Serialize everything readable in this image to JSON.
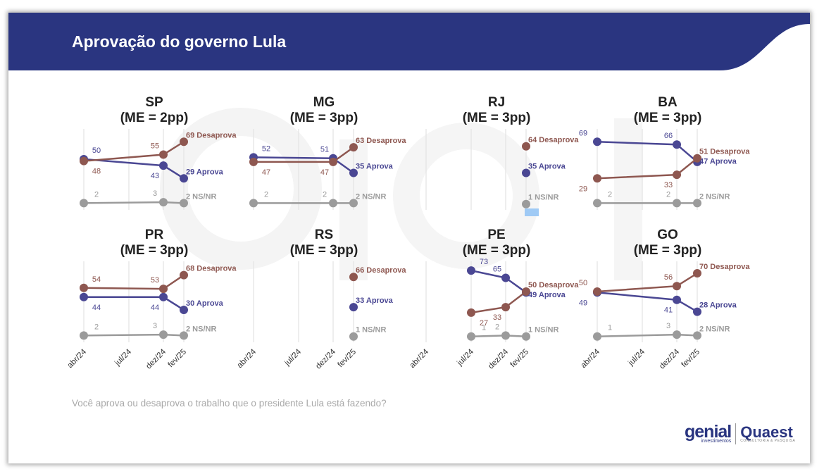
{
  "header": {
    "title": "Aprovação do governo Lula"
  },
  "watermark": {
    "line1": "genial",
    "line2": "investimentos"
  },
  "footer": {
    "question": "Você aprova ou desaprova o trabalho que o presidente Lula está fazendo?"
  },
  "logos": {
    "genial": "genial",
    "genial_sub": "investimentos",
    "quaest": "Quaest",
    "quaest_sub": "CONSULTORIA & PESQUISA"
  },
  "colors": {
    "header": "#2a3580",
    "aprova": "#4a4793",
    "desaprova": "#8e5750",
    "nsnr": "#9b9b9b",
    "grid": "#e3e3e3"
  },
  "chart_data": [
    {
      "type": "line",
      "title": "SP",
      "subtitle": "(ME = 2pp)",
      "categories": [
        "abr/24",
        "jul/24",
        "dez/24",
        "fev/25"
      ],
      "series": [
        {
          "name": "Aprova",
          "x": [
            "abr/24",
            "dez/24",
            "fev/25"
          ],
          "values": [
            50,
            43,
            29
          ]
        },
        {
          "name": "Desaprova",
          "x": [
            "abr/24",
            "dez/24",
            "fev/25"
          ],
          "values": [
            48,
            55,
            69
          ]
        },
        {
          "name": "NS/NR",
          "x": [
            "abr/24",
            "dez/24",
            "fev/25"
          ],
          "values": [
            2,
            3,
            2
          ]
        }
      ]
    },
    {
      "type": "line",
      "title": "MG",
      "subtitle": "(ME = 3pp)",
      "categories": [
        "abr/24",
        "jul/24",
        "dez/24",
        "fev/25"
      ],
      "series": [
        {
          "name": "Aprova",
          "x": [
            "abr/24",
            "dez/24",
            "fev/25"
          ],
          "values": [
            52,
            51,
            35
          ]
        },
        {
          "name": "Desaprova",
          "x": [
            "abr/24",
            "dez/24",
            "fev/25"
          ],
          "values": [
            47,
            47,
            63
          ]
        },
        {
          "name": "NS/NR",
          "x": [
            "abr/24",
            "dez/24",
            "fev/25"
          ],
          "values": [
            2,
            2,
            2
          ]
        }
      ]
    },
    {
      "type": "line",
      "title": "RJ",
      "subtitle": "(ME = 3pp)",
      "categories": [
        "abr/24",
        "jul/24",
        "dez/24",
        "fev/25"
      ],
      "series": [
        {
          "name": "Aprova",
          "x": [
            "fev/25"
          ],
          "values": [
            35
          ]
        },
        {
          "name": "Desaprova",
          "x": [
            "fev/25"
          ],
          "values": [
            64
          ]
        },
        {
          "name": "NS/NR",
          "x": [
            "fev/25"
          ],
          "values": [
            1
          ]
        }
      ]
    },
    {
      "type": "line",
      "title": "BA",
      "subtitle": "(ME = 3pp)",
      "categories": [
        "abr/24",
        "jul/24",
        "dez/24",
        "fev/25"
      ],
      "series": [
        {
          "name": "Aprova",
          "x": [
            "abr/24",
            "dez/24",
            "fev/25"
          ],
          "values": [
            69,
            66,
            47
          ]
        },
        {
          "name": "Desaprova",
          "x": [
            "abr/24",
            "dez/24",
            "fev/25"
          ],
          "values": [
            29,
            33,
            51
          ]
        },
        {
          "name": "NS/NR",
          "x": [
            "abr/24",
            "dez/24",
            "fev/25"
          ],
          "values": [
            2,
            2,
            2
          ]
        }
      ]
    },
    {
      "type": "line",
      "title": "PR",
      "subtitle": "(ME = 3pp)",
      "categories": [
        "abr/24",
        "jul/24",
        "dez/24",
        "fev/25"
      ],
      "series": [
        {
          "name": "Aprova",
          "x": [
            "abr/24",
            "dez/24",
            "fev/25"
          ],
          "values": [
            44,
            44,
            30
          ]
        },
        {
          "name": "Desaprova",
          "x": [
            "abr/24",
            "dez/24",
            "fev/25"
          ],
          "values": [
            54,
            53,
            68
          ]
        },
        {
          "name": "NS/NR",
          "x": [
            "abr/24",
            "dez/24",
            "fev/25"
          ],
          "values": [
            2,
            3,
            2
          ]
        }
      ]
    },
    {
      "type": "line",
      "title": "RS",
      "subtitle": "(ME = 3pp)",
      "categories": [
        "abr/24",
        "jul/24",
        "dez/24",
        "fev/25"
      ],
      "series": [
        {
          "name": "Aprova",
          "x": [
            "fev/25"
          ],
          "values": [
            33
          ]
        },
        {
          "name": "Desaprova",
          "x": [
            "fev/25"
          ],
          "values": [
            66
          ]
        },
        {
          "name": "NS/NR",
          "x": [
            "fev/25"
          ],
          "values": [
            1
          ]
        }
      ]
    },
    {
      "type": "line",
      "title": "PE",
      "subtitle": "(ME = 3pp)",
      "categories": [
        "abr/24",
        "jul/24",
        "dez/24",
        "fev/25"
      ],
      "series": [
        {
          "name": "Aprova",
          "x": [
            "jul/24",
            "dez/24",
            "fev/25"
          ],
          "values": [
            73,
            65,
            49
          ]
        },
        {
          "name": "Desaprova",
          "x": [
            "jul/24",
            "dez/24",
            "fev/25"
          ],
          "values": [
            27,
            33,
            50
          ]
        },
        {
          "name": "NS/NR",
          "x": [
            "jul/24",
            "dez/24",
            "fev/25"
          ],
          "values": [
            1,
            2,
            1
          ]
        }
      ]
    },
    {
      "type": "line",
      "title": "GO",
      "subtitle": "(ME = 3pp)",
      "categories": [
        "abr/24",
        "jul/24",
        "dez/24",
        "fev/25"
      ],
      "series": [
        {
          "name": "Aprova",
          "x": [
            "abr/24",
            "dez/24",
            "fev/25"
          ],
          "values": [
            49,
            41,
            28
          ]
        },
        {
          "name": "Desaprova",
          "x": [
            "abr/24",
            "dez/24",
            "fev/25"
          ],
          "values": [
            50,
            56,
            70
          ]
        },
        {
          "name": "NS/NR",
          "x": [
            "abr/24",
            "dez/24",
            "fev/25"
          ],
          "values": [
            1,
            3,
            2
          ]
        }
      ]
    }
  ]
}
